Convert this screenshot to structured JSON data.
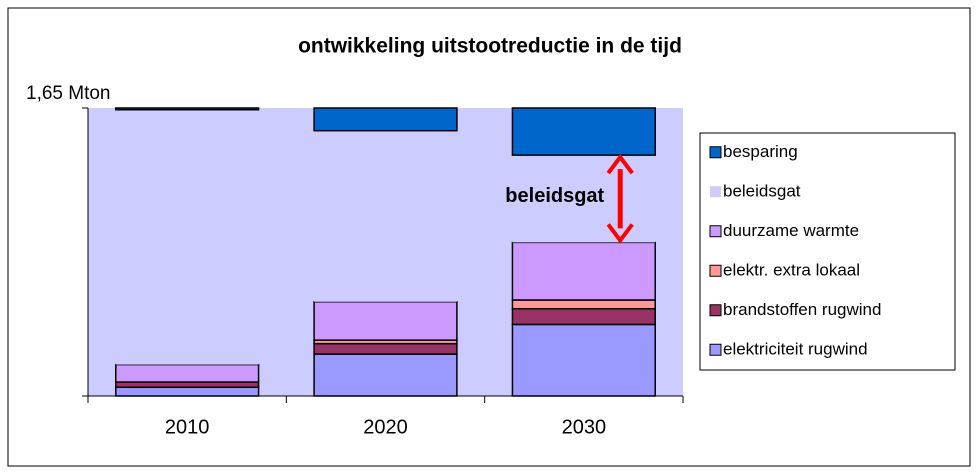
{
  "chart_data": {
    "type": "stacked_bar",
    "title": "ontwikkeling uitstootreductie in de tijd",
    "categories": [
      "2010",
      "2020",
      "2030"
    ],
    "series": [
      {
        "name": "elektriciteit rugwind",
        "color": "#9999ff",
        "values": [
          0.05,
          0.24,
          0.41
        ]
      },
      {
        "name": "brandstoffen rugwind",
        "color": "#993366",
        "values": [
          0.03,
          0.06,
          0.09
        ]
      },
      {
        "name": "elektr. extra lokaal",
        "color": "#ff9999",
        "values": [
          0,
          0.02,
          0.05
        ]
      },
      {
        "name": "duurzame warmte",
        "color": "#cc99ff",
        "values": [
          0.1,
          0.22,
          0.33
        ]
      },
      {
        "name": "beleidsgat",
        "color": "#ccccff",
        "values": [
          1.46,
          0.98,
          0.5
        ]
      },
      {
        "name": "besparing",
        "color": "#0066cc",
        "values": [
          0.01,
          0.13,
          0.27
        ]
      }
    ],
    "ylim": [
      0,
      1.65
    ],
    "yticks": [
      {
        "value": 1.65,
        "label": "1,65 Mton"
      }
    ],
    "annotation": "beleidsgat",
    "annotation_color": "#ff0000",
    "legend": "right"
  }
}
